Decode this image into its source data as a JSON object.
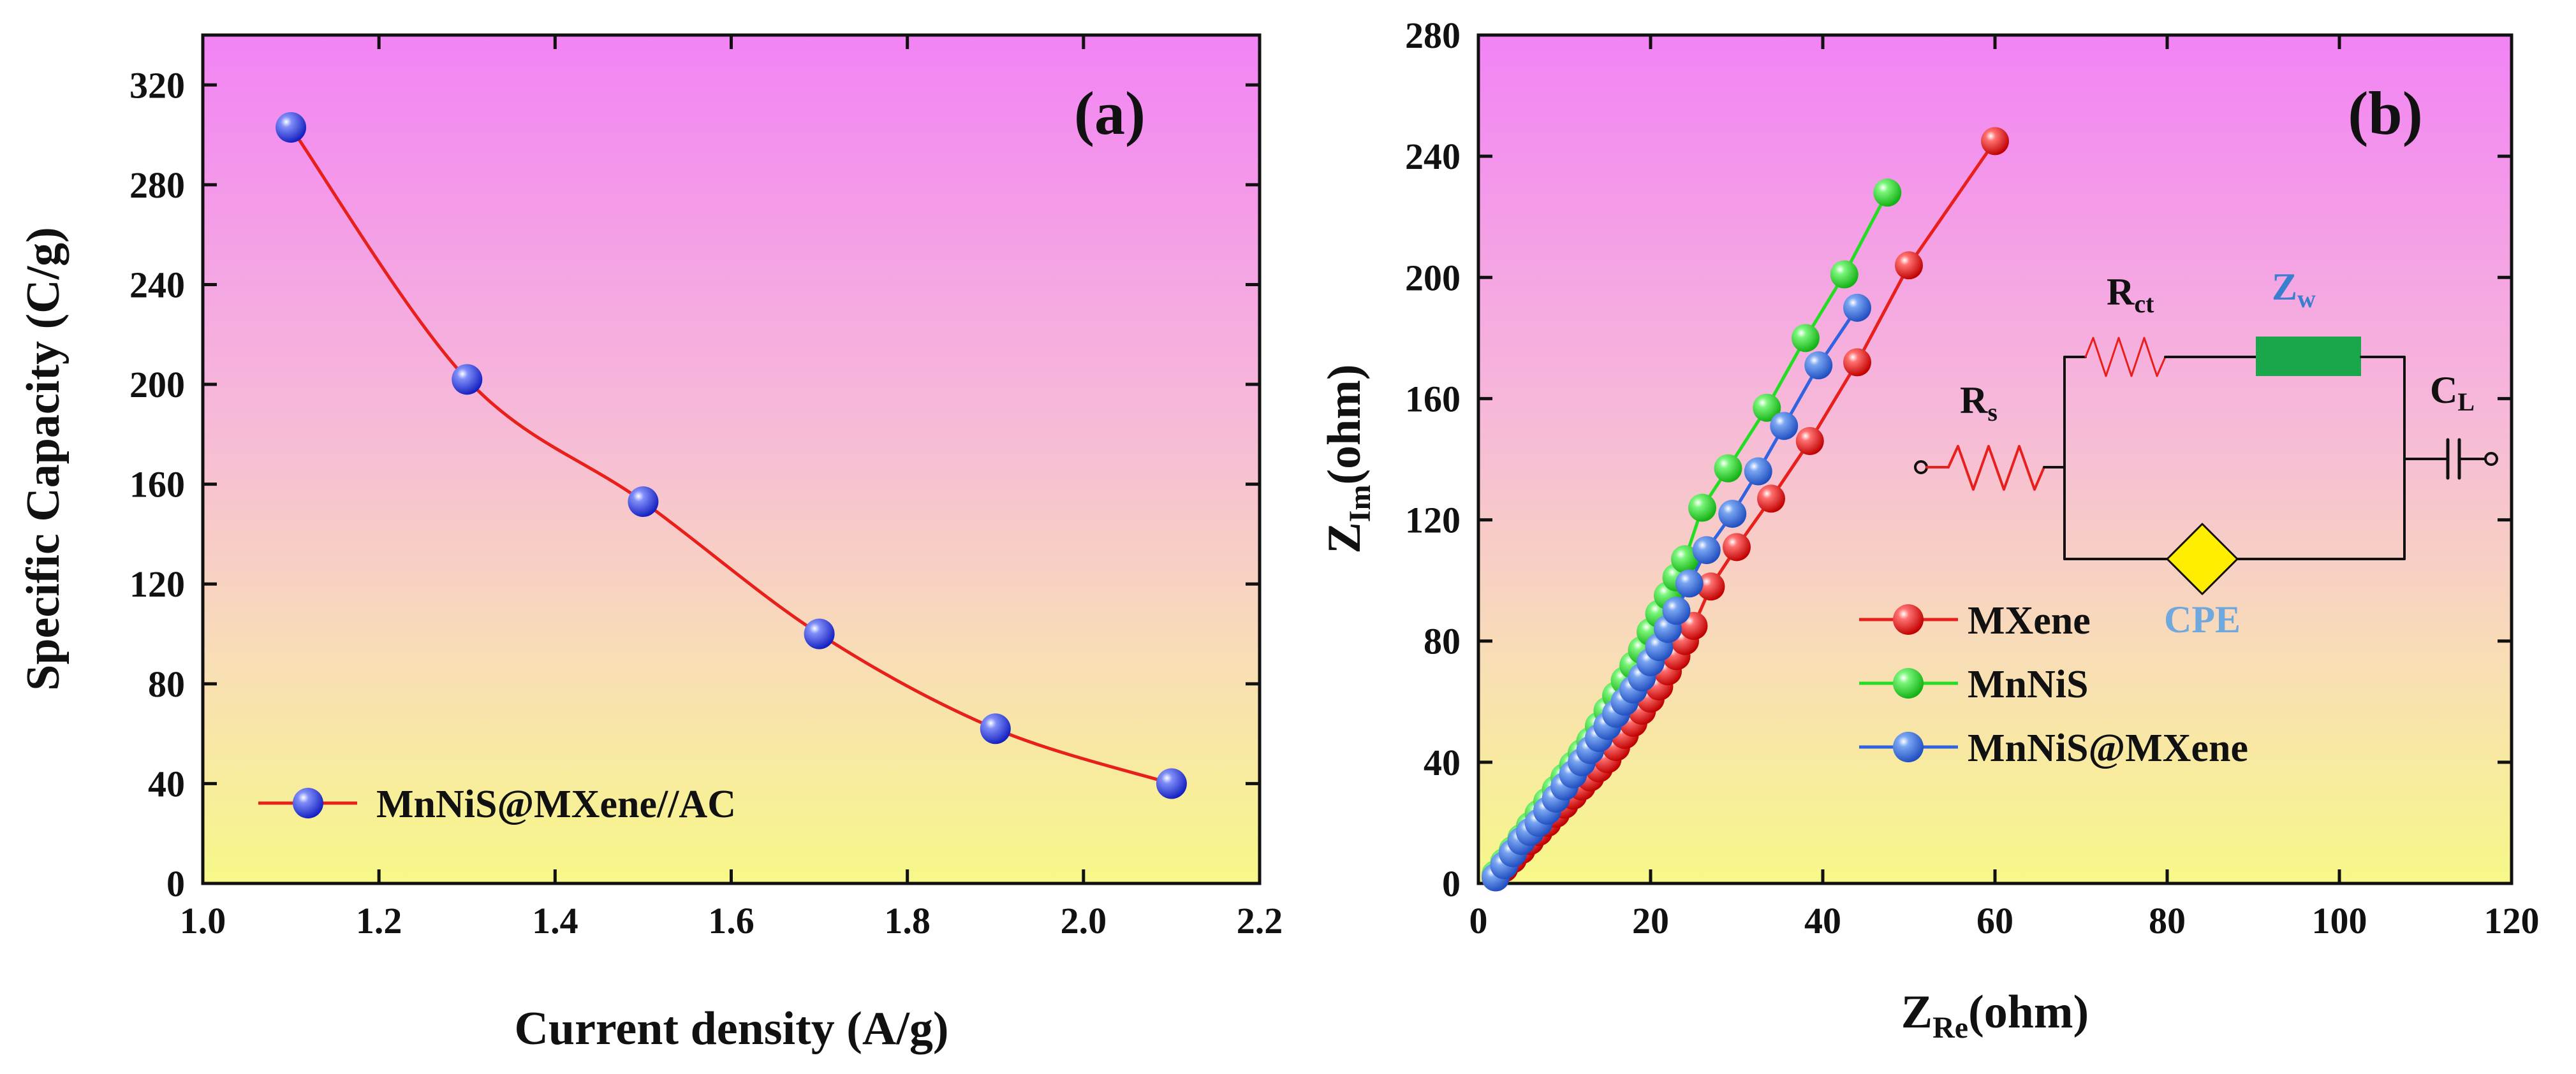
{
  "chart_data": [
    {
      "type": "line",
      "panel_label": "(a)",
      "title": "",
      "xlabel": "Current density (A/g)",
      "ylabel": "Specific Capacity (C/g)",
      "xlim": [
        1.0,
        2.2
      ],
      "ylim": [
        0,
        340
      ],
      "x_ticks": [
        "1.0",
        "1.2",
        "1.4",
        "1.6",
        "1.8",
        "2.0",
        "2.2"
      ],
      "y_ticks": [
        "0",
        "40",
        "80",
        "120",
        "160",
        "200",
        "240",
        "280",
        "320"
      ],
      "grid": false,
      "legend_position": "lower-left",
      "background": "gradient magenta (top) to yellow (bottom)",
      "series": [
        {
          "name": "MnNiS@MXene//AC",
          "line_color": "#e8201c",
          "marker_color": "#2a3ee8",
          "x": [
            1.1,
            1.3,
            1.5,
            1.7,
            1.9,
            2.1
          ],
          "values": [
            303,
            202,
            153,
            100,
            62,
            40
          ]
        }
      ]
    },
    {
      "type": "scatter",
      "panel_label": "(b)",
      "title": "",
      "xlabel": "Z",
      "xlabel_sub": "Re",
      "xlabel_suffix": "(ohm)",
      "ylabel": "Z",
      "ylabel_sub": "Im",
      "ylabel_suffix": "(ohm)",
      "xlim": [
        0,
        120
      ],
      "ylim": [
        0,
        280
      ],
      "x_ticks": [
        "0",
        "20",
        "40",
        "60",
        "80",
        "100",
        "120"
      ],
      "y_ticks": [
        "0",
        "40",
        "80",
        "120",
        "160",
        "200",
        "240",
        "280"
      ],
      "grid": false,
      "legend_position": "lower-right",
      "background": "gradient magenta (top) to yellow (bottom)",
      "series": [
        {
          "name": "MXene",
          "color": "#e8201c",
          "x": [
            2,
            3,
            4,
            5,
            6,
            7,
            8,
            9,
            10,
            11,
            12,
            13,
            14,
            15,
            16,
            17,
            18,
            19,
            20,
            21,
            22,
            23,
            24,
            25,
            27,
            30,
            34,
            38.5,
            44,
            50,
            60
          ],
          "y": [
            2,
            5,
            8,
            11,
            14,
            17,
            20,
            23,
            26,
            29,
            32,
            35,
            38,
            41,
            45,
            49,
            53,
            57,
            61,
            65,
            70,
            75,
            80,
            85,
            98,
            111,
            127,
            146,
            172,
            204,
            245
          ]
        },
        {
          "name": "MnNiS",
          "color": "#22dd22",
          "x": [
            2,
            3,
            4,
            5,
            6,
            7,
            8,
            9,
            10,
            11,
            12,
            13,
            14,
            15,
            16,
            17,
            18,
            19,
            20,
            21,
            22,
            23,
            24,
            26,
            29,
            33.5,
            38,
            42.5,
            47.5
          ],
          "y": [
            3,
            7,
            11,
            15,
            19,
            23,
            27,
            31,
            35,
            39,
            43,
            47,
            52,
            57,
            62,
            67,
            72,
            77,
            83,
            89,
            95,
            101,
            107,
            124,
            137,
            157,
            180,
            201,
            228
          ]
        },
        {
          "name": "MnNiS@MXene",
          "color": "#2f63e0",
          "x": [
            2,
            3,
            4,
            5,
            6,
            7,
            8,
            9,
            10,
            11,
            12,
            13,
            14,
            15,
            16,
            17,
            18,
            19,
            20,
            21,
            22,
            23,
            24.5,
            26.5,
            29.5,
            32.5,
            35.5,
            39.5,
            44
          ],
          "y": [
            2,
            6,
            10,
            14,
            17,
            20,
            24,
            28,
            32,
            36,
            40,
            44,
            48,
            52,
            56,
            60,
            64,
            68,
            73,
            78,
            84,
            90,
            99,
            110,
            122,
            136,
            151,
            171,
            190
          ]
        }
      ],
      "inset_circuit": {
        "labels": {
          "rs": "R",
          "rs_sub": "s",
          "rct": "R",
          "rct_sub": "ct",
          "zw": "Z",
          "zw_sub": "w",
          "cl": "C",
          "cl_sub": "L",
          "cpe": "CPE"
        },
        "colors": {
          "resistor": "#e8201c",
          "zw_block": "#1aa64a",
          "cpe_block": "#ffee00",
          "label_blue": "#3a7ecf",
          "cpe_label": "#6fa8dc"
        }
      }
    }
  ]
}
